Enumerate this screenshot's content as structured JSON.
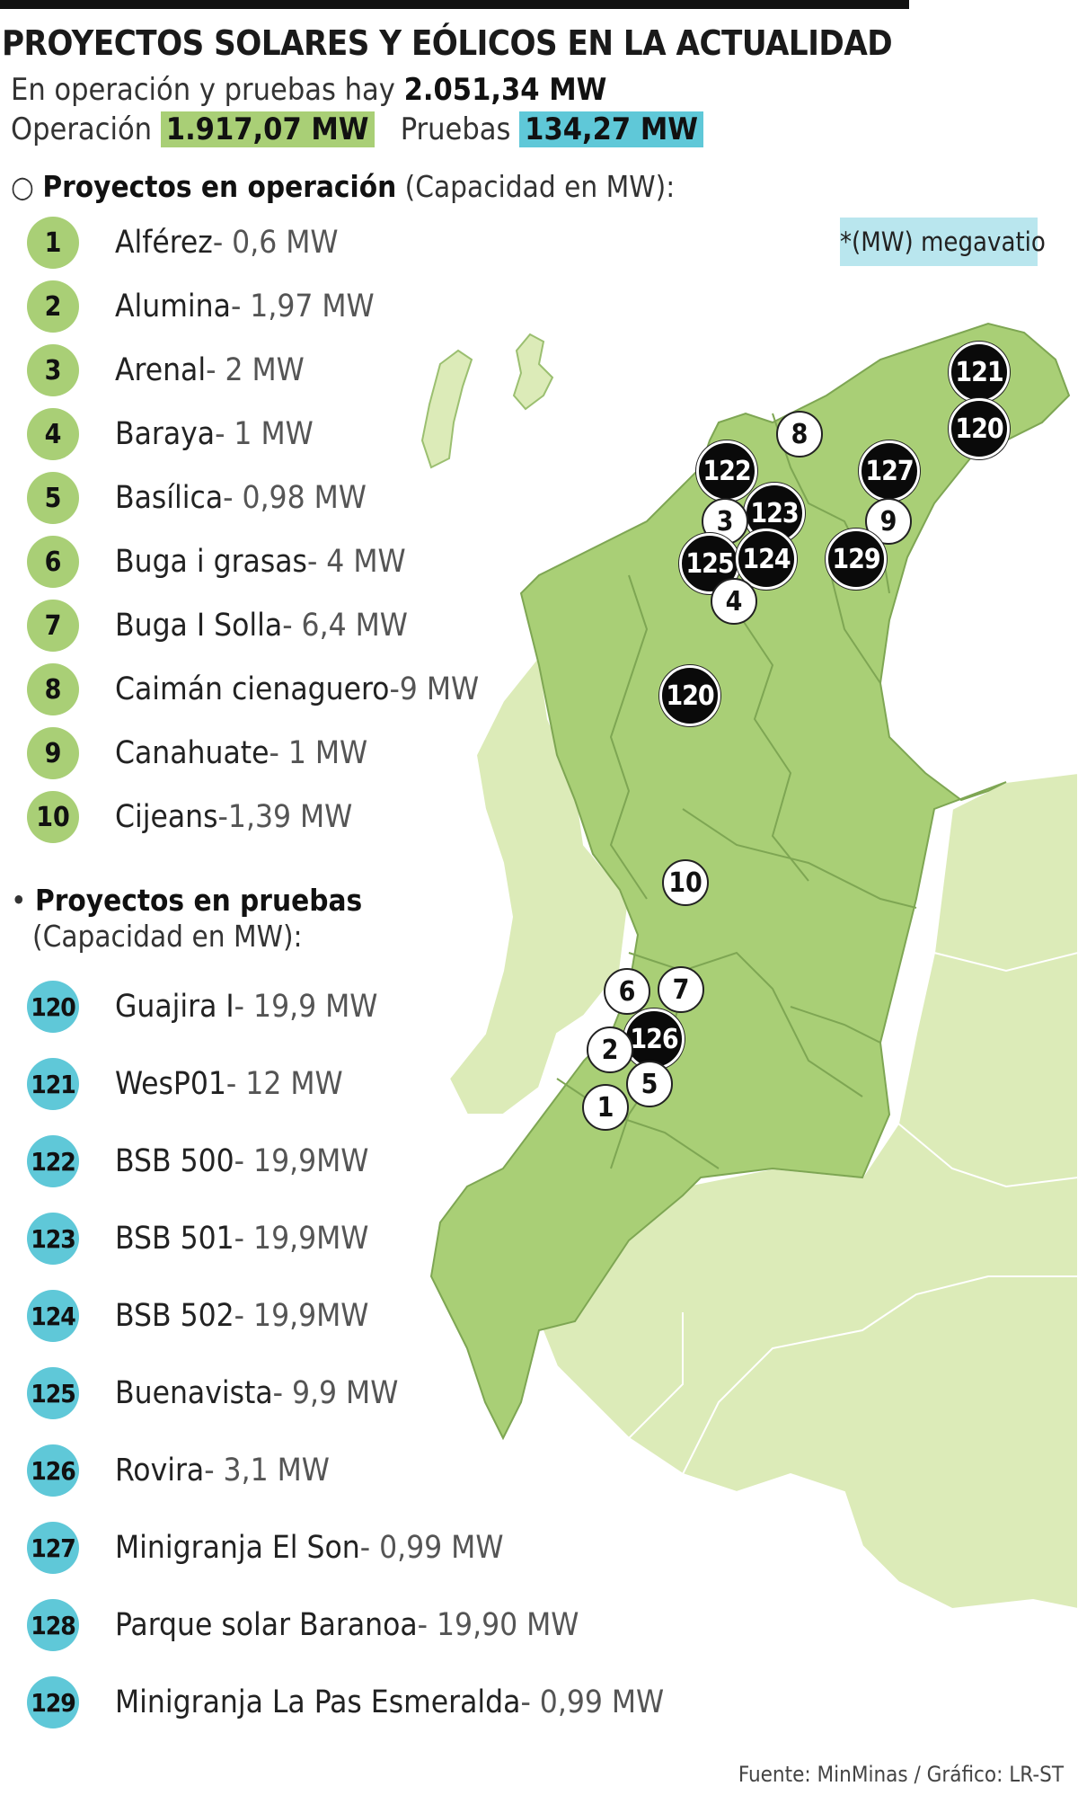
{
  "header": {
    "title": "PROYECTOS SOLARES Y EÓLICOS EN LA ACTUALIDAD",
    "sub1_prefix": "En operación y pruebas hay ",
    "sub1_total": "2.051,34 MW",
    "op_label": "Operación",
    "op_value": "1.917,07 MW",
    "pr_label": "Pruebas",
    "pr_value": "134,27 MW"
  },
  "operation": {
    "bullet": "○",
    "heading": "Proyectos en operación",
    "heading_suffix": " (Capacidad en MW):",
    "items": [
      {
        "num": "1",
        "name": "Alférez",
        "cap": " - 0,6 MW"
      },
      {
        "num": "2",
        "name": "Alumina",
        "cap": " - 1,97 MW"
      },
      {
        "num": "3",
        "name": "Arenal",
        "cap": " - 2 MW"
      },
      {
        "num": "4",
        "name": "Baraya",
        "cap": " - 1 MW"
      },
      {
        "num": "5",
        "name": "Basílica",
        "cap": " - 0,98 MW"
      },
      {
        "num": "6",
        "name": "Buga i grasas",
        "cap": " - 4 MW"
      },
      {
        "num": "7",
        "name": "Buga I Solla",
        "cap": " - 6,4 MW"
      },
      {
        "num": "8",
        "name": "Caimán cienaguero",
        "cap": " -9 MW"
      },
      {
        "num": "9",
        "name": "Canahuate",
        "cap": " - 1 MW"
      },
      {
        "num": "10",
        "name": "Cijeans",
        "cap": " -1,39 MW"
      }
    ]
  },
  "tests": {
    "bullet": "•",
    "heading": "Proyectos en pruebas",
    "heading_line2": "(Capacidad en MW):",
    "items": [
      {
        "num": "120",
        "name": "Guajira I",
        "cap": " - 19,9 MW"
      },
      {
        "num": "121",
        "name": "WesP01",
        "cap": " - 12 MW"
      },
      {
        "num": "122",
        "name": "BSB 500",
        "cap": " - 19,9MW"
      },
      {
        "num": "123",
        "name": "BSB 501",
        "cap": " - 19,9MW"
      },
      {
        "num": "124",
        "name": "BSB 502",
        "cap": " - 19,9MW"
      },
      {
        "num": "125",
        "name": "Buenavista",
        "cap": " - 9,9 MW"
      },
      {
        "num": "126",
        "name": "Rovira",
        "cap": " - 3,1 MW"
      },
      {
        "num": "127",
        "name": "Minigranja El Son",
        "cap": " - 0,99 MW"
      },
      {
        "num": "128",
        "name": "Parque solar Baranoa",
        "cap": " - 19,90 MW"
      },
      {
        "num": "129",
        "name": "Minigranja La Pas Esmeralda",
        "cap": " - 0,99 MW"
      }
    ]
  },
  "legend_note": "*(MW) megavatio",
  "map_markers": [
    {
      "label": "121",
      "style": "black"
    },
    {
      "label": "120",
      "style": "black"
    },
    {
      "label": "8",
      "style": "white"
    },
    {
      "label": "122",
      "style": "black"
    },
    {
      "label": "127",
      "style": "black"
    },
    {
      "label": "123",
      "style": "black"
    },
    {
      "label": "3",
      "style": "white"
    },
    {
      "label": "9",
      "style": "white"
    },
    {
      "label": "125",
      "style": "black"
    },
    {
      "label": "124",
      "style": "black"
    },
    {
      "label": "129",
      "style": "black"
    },
    {
      "label": "4",
      "style": "white"
    },
    {
      "label": "120",
      "style": "black"
    },
    {
      "label": "10",
      "style": "white"
    },
    {
      "label": "6",
      "style": "white"
    },
    {
      "label": "7",
      "style": "white"
    },
    {
      "label": "126",
      "style": "black"
    },
    {
      "label": "2",
      "style": "white"
    },
    {
      "label": "5",
      "style": "white"
    },
    {
      "label": "1",
      "style": "white"
    }
  ],
  "colors": {
    "operation": "#a9cf76",
    "tests": "#5fc8d8",
    "map_region": "#a9cf76",
    "map_region_light": "#dcebb8",
    "note_bg": "#b9e6ee"
  },
  "source": "Fuente: MinMinas / Gráfico: LR-ST"
}
